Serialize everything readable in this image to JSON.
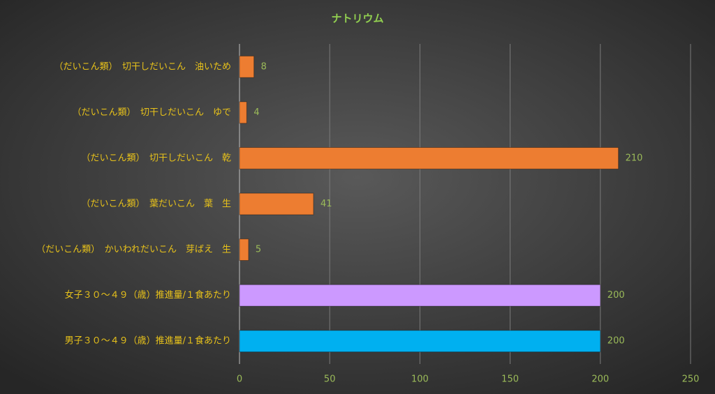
{
  "chart_data": {
    "type": "bar",
    "orientation": "horizontal",
    "title": "ナトリウム",
    "categories": [
      "（だいこん類）　切干しだいこん　油いため",
      "（だいこん類）　切干しだいこん　ゆで",
      "（だいこん類）　切干しだいこん　乾",
      "（だいこん類）　葉だいこん　葉　生",
      "（だいこん類）　かいわれだいこん　芽ばえ　生",
      "女子３０～４９（歳）推進量/１食あたり",
      "男子３０～４９（歳）推進量/１食あたり"
    ],
    "values": [
      8,
      4,
      210,
      41,
      5,
      200,
      200
    ],
    "colors": [
      "#ed7d31",
      "#ed7d31",
      "#ed7d31",
      "#ed7d31",
      "#ed7d31",
      "#cc99ff",
      "#00b0f0"
    ],
    "xlim": [
      0,
      250
    ],
    "xticks": [
      0,
      50,
      100,
      150,
      200,
      250
    ],
    "grid": true
  }
}
